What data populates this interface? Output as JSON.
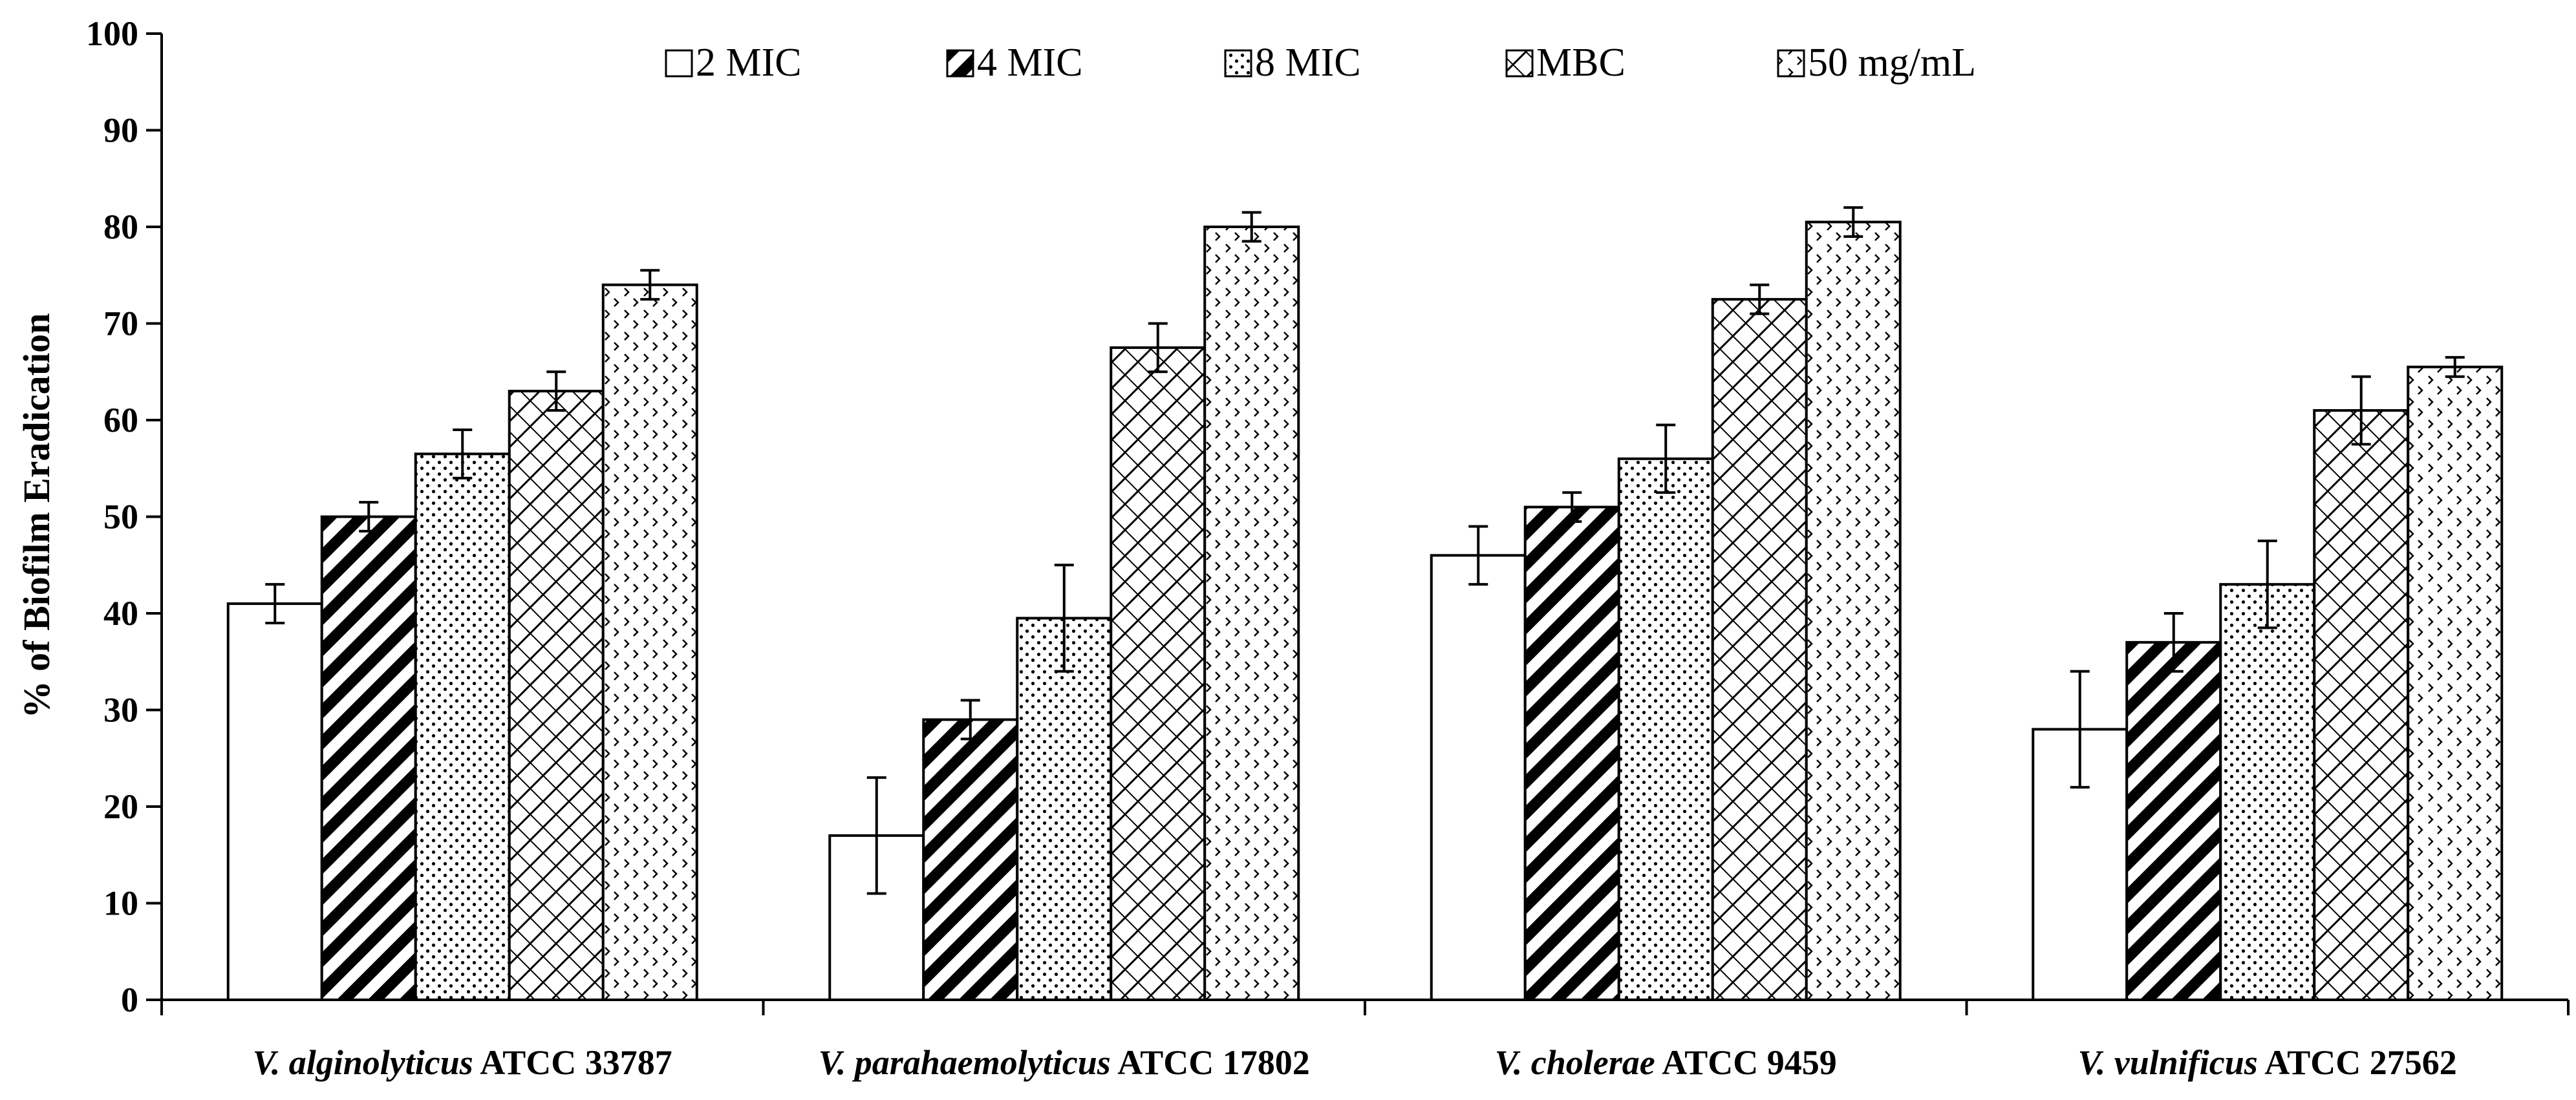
{
  "chart_data": {
    "type": "bar",
    "title": "",
    "xlabel": "",
    "ylabel": "% of Biofilm Eradication",
    "ylim": [
      0,
      100
    ],
    "yticks": [
      0,
      10,
      20,
      30,
      40,
      50,
      60,
      70,
      80,
      90,
      100
    ],
    "grid": false,
    "legend_position": "top",
    "categories": [
      {
        "species": "V. alginolyticus",
        "strain": "ATCC 33787"
      },
      {
        "species": "V. parahaemolyticus",
        "strain": "ATCC 17802"
      },
      {
        "species": "V. cholerae",
        "strain": "ATCC 9459"
      },
      {
        "species": "V. vulnificus",
        "strain": "ATCC 27562"
      }
    ],
    "series": [
      {
        "name": "2 MIC",
        "pattern": "blank",
        "values": [
          41,
          17,
          46,
          28
        ],
        "errors": [
          2,
          6,
          3,
          6
        ]
      },
      {
        "name": "4 MIC",
        "pattern": "diagonal-stripes",
        "values": [
          50,
          29,
          51,
          37
        ],
        "errors": [
          1.5,
          2,
          1.5,
          3
        ]
      },
      {
        "name": "8 MIC",
        "pattern": "dots",
        "values": [
          56.5,
          39.5,
          56,
          43
        ],
        "errors": [
          2.5,
          5.5,
          3.5,
          4.5
        ]
      },
      {
        "name": "MBC",
        "pattern": "lattice",
        "values": [
          63,
          67.5,
          72.5,
          61
        ],
        "errors": [
          2,
          2.5,
          1.5,
          3.5
        ]
      },
      {
        "name": "50 mg/mL",
        "pattern": "sparse-chevrons",
        "values": [
          74,
          80,
          80.5,
          65.5
        ],
        "errors": [
          1.5,
          1.5,
          1.5,
          1
        ]
      }
    ]
  }
}
